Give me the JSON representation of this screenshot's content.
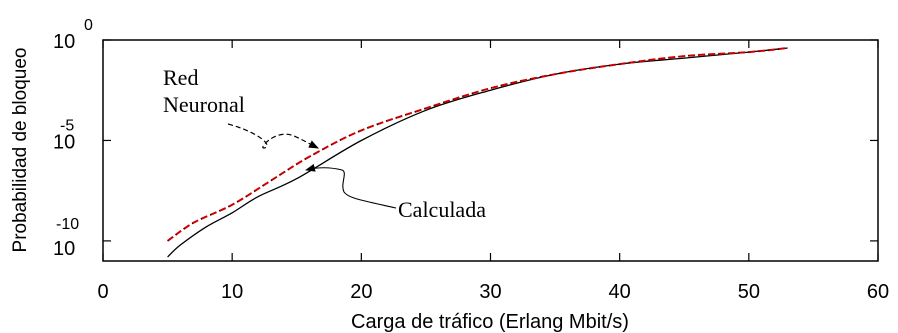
{
  "chart_data": {
    "type": "line",
    "xlabel": "Carga de tráfico (Erlang Mbit/s)",
    "ylabel": "Probabilidad de bloqueo",
    "xlim": [
      0,
      60
    ],
    "ylim_exponent": [
      -11,
      0
    ],
    "y_scale": "log",
    "grid": false,
    "legend": "none",
    "x_ticks": [
      0,
      10,
      20,
      30,
      40,
      50,
      60
    ],
    "y_ticks": [
      {
        "base": "10",
        "exponent": "0",
        "value_exponent": 0
      },
      {
        "base": "10",
        "exponent": "-5",
        "value_exponent": -5
      },
      {
        "base": "10",
        "exponent": "-10",
        "value_exponent": -10
      }
    ],
    "series": [
      {
        "name": "Red Neuronal",
        "color": "#cc0000",
        "style": "dashed",
        "x": [
          5,
          7,
          10,
          13,
          16,
          20,
          25,
          30,
          35,
          40,
          45,
          50,
          53
        ],
        "y_exponent": [
          -10.0,
          -9.1,
          -8.2,
          -7.0,
          -5.8,
          -4.5,
          -3.4,
          -2.4,
          -1.7,
          -1.2,
          -0.8,
          -0.6,
          -0.4
        ]
      },
      {
        "name": "Calculada",
        "color": "#000000",
        "style": "solid",
        "x": [
          5,
          6,
          8,
          10,
          12,
          15,
          20,
          25,
          30,
          35,
          40,
          45,
          50,
          53
        ],
        "y_exponent": [
          -10.8,
          -10.2,
          -9.3,
          -8.6,
          -7.8,
          -6.9,
          -5.0,
          -3.5,
          -2.5,
          -1.7,
          -1.2,
          -0.9,
          -0.6,
          -0.4
        ]
      }
    ],
    "annotations": [
      {
        "lines": [
          "Red",
          "Neuronal"
        ],
        "target_series": "Red Neuronal"
      },
      {
        "lines": [
          "Calculada"
        ],
        "target_series": "Calculada"
      }
    ]
  }
}
